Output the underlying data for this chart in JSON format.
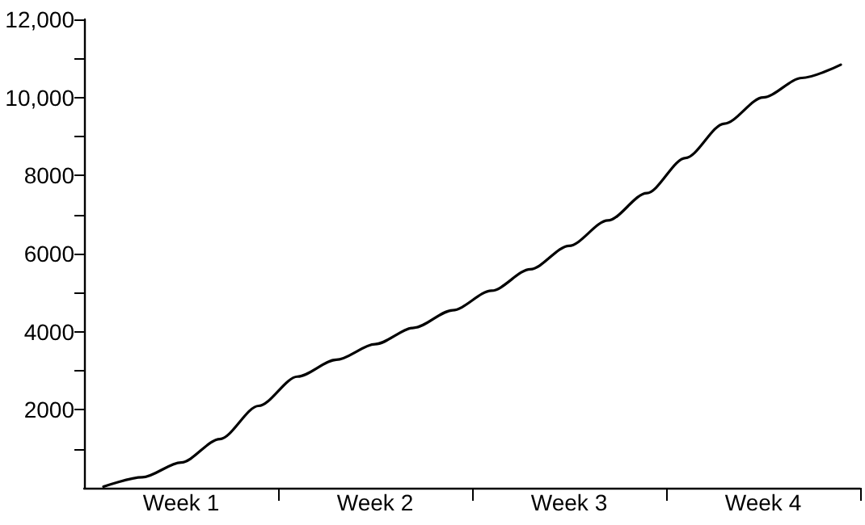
{
  "chart_data": {
    "type": "line",
    "marker": "none",
    "grid": false,
    "categories": [
      null,
      null,
      "Week 1",
      null,
      null,
      null,
      null,
      "Week 2",
      null,
      null,
      null,
      null,
      "Week 3",
      null,
      null,
      null,
      null,
      "Week 4",
      null,
      null
    ],
    "series": [
      {
        "color": "#000000",
        "values": [
          30,
          270,
          650,
          1250,
          2100,
          2850,
          3280,
          3680,
          4100,
          4550,
          5050,
          5600,
          6200,
          6850,
          7550,
          8450,
          9330,
          10000,
          10500,
          10840
        ]
      }
    ],
    "ylim": [
      0,
      12000
    ],
    "yticks": [
      {
        "value": 1000,
        "label": null
      },
      {
        "value": 2000,
        "label": "2000"
      },
      {
        "value": 3000,
        "label": null
      },
      {
        "value": 4000,
        "label": "4000"
      },
      {
        "value": 5000,
        "label": null
      },
      {
        "value": 6000,
        "label": "6000"
      },
      {
        "value": 7000,
        "label": null
      },
      {
        "value": 8000,
        "label": "8000"
      },
      {
        "value": 9000,
        "label": null
      },
      {
        "value": 10000,
        "label": "10,000"
      },
      {
        "value": 11000,
        "label": null
      },
      {
        "value": 12000,
        "label": "12,000"
      }
    ]
  }
}
